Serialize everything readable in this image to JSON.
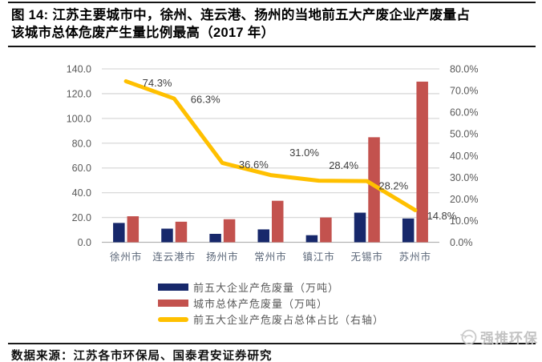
{
  "header": {
    "title": "图 14: 江苏主要城市中，徐州、连云港、扬州的当地前五大产废企业产废量占该城市总体危废产生量比例最高（2017 年）"
  },
  "chart_data": {
    "type": "combo-bar-line",
    "categories": [
      "徐州市",
      "连云港市",
      "扬州市",
      "常州市",
      "镇江市",
      "无锡市",
      "苏州市"
    ],
    "bar_series": [
      {
        "name": "前五大企业产危废量（万吨）",
        "color": "#17286b",
        "values": [
          15.6,
          11.0,
          6.8,
          10.4,
          5.7,
          23.9,
          19.2
        ]
      },
      {
        "name": "城市总体产危废量（万吨）",
        "color": "#c3524e",
        "values": [
          21.0,
          16.6,
          18.6,
          33.5,
          20.0,
          84.8,
          129.7
        ]
      }
    ],
    "line_series": {
      "name": "前五大企业产危废占总体占比（右轴）",
      "color": "#ffc000",
      "axis": "right",
      "values_pct": [
        74.3,
        66.3,
        36.6,
        31.0,
        28.4,
        28.2,
        14.8
      ],
      "point_labels": [
        "74.3%",
        "66.3%",
        "36.6%",
        "31.0%",
        "28.4%",
        "28.2%",
        "14.8%"
      ]
    },
    "left_axis": {
      "min": 0,
      "max": 140,
      "step": 20,
      "tick_labels": [
        "140.0",
        "120.0",
        "100.0",
        "80.0",
        "60.0",
        "40.0",
        "20.0",
        "0.0"
      ]
    },
    "right_axis": {
      "min": 0,
      "max": 80,
      "step": 10,
      "tick_labels": [
        "80.0%",
        "70.0%",
        "60.0%",
        "50.0%",
        "40.0%",
        "30.0%",
        "20.0%",
        "10.0%",
        "0.0%"
      ]
    },
    "grid": "horizontal",
    "legend_position": "bottom",
    "colors": {
      "gridline": "#d9d9d9",
      "axis_line": "#b3b3b3",
      "tick_text": "#595959",
      "category_text": "#5a6678",
      "data_label_text": "#3f3f3f"
    }
  },
  "footer": {
    "source": "数据来源：江苏各市环保局、国泰君安证券研究",
    "watermark": "强推环保"
  }
}
